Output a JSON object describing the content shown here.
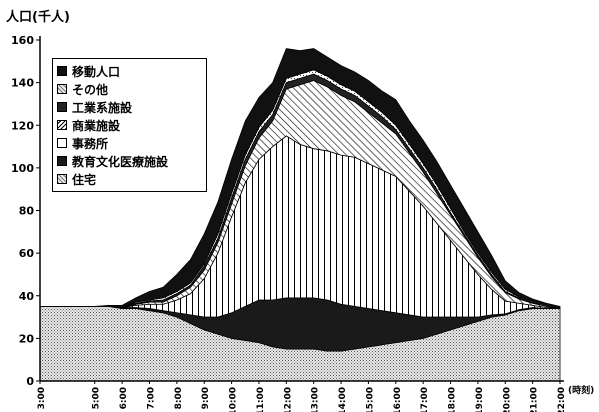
{
  "chart_data": {
    "type": "area",
    "title": "",
    "ylabel": "人口(千人)",
    "xlabel": "(時刻)",
    "ylim": [
      0,
      160
    ],
    "yticks": [
      0,
      20,
      40,
      60,
      80,
      100,
      120,
      140,
      160
    ],
    "grid": false,
    "legend_position": "top-left",
    "categories": [
      "3:00",
      "3:30",
      "4:00",
      "4:30",
      "5:00",
      "5:30",
      "6:00",
      "6:30",
      "7:00",
      "7:30",
      "8:00",
      "8:30",
      "9:00",
      "9:30",
      "10:00",
      "10:30",
      "11:00",
      "11:30",
      "12:00",
      "12:30",
      "13:00",
      "13:30",
      "14:00",
      "14:30",
      "15:00",
      "15:30",
      "16:00",
      "16:30",
      "17:00",
      "17:30",
      "18:00",
      "18:30",
      "19:00",
      "19:30",
      "20:00",
      "20:30",
      "21:00",
      "21:30",
      "22:00"
    ],
    "x_tick_labels": [
      "3:00",
      "5:00",
      "6:00",
      "7:00",
      "8:00",
      "9:00",
      "10:00",
      "11:00",
      "12:00",
      "13:00",
      "14:00",
      "15:00",
      "16:00",
      "17:00",
      "18:00",
      "19:00",
      "20:00",
      "21:00",
      "22:00"
    ],
    "series": [
      {
        "name": "住宅",
        "values": [
          35,
          35,
          35,
          35,
          35,
          35,
          34,
          34,
          33,
          32,
          30,
          27,
          24,
          22,
          20,
          19,
          18,
          16,
          15,
          15,
          15,
          14,
          14,
          15,
          16,
          17,
          18,
          19,
          20,
          22,
          24,
          26,
          28,
          30,
          31,
          33,
          34,
          34,
          34
        ]
      },
      {
        "name": "教育文化医療施設",
        "values": [
          0,
          0,
          0,
          0,
          0,
          0,
          0.5,
          0.5,
          1,
          1,
          2,
          4,
          6,
          8,
          12,
          16,
          20,
          22,
          24,
          24,
          24,
          24,
          22,
          20,
          18,
          16,
          14,
          12,
          10,
          8,
          6,
          4,
          2,
          1,
          0.5,
          0.5,
          0.5,
          0,
          0
        ]
      },
      {
        "name": "事務所",
        "values": [
          0,
          0,
          0,
          0,
          0,
          0,
          0,
          1,
          2,
          3,
          6,
          10,
          18,
          30,
          45,
          58,
          66,
          72,
          76,
          72,
          70,
          70,
          70,
          70,
          68,
          66,
          64,
          58,
          52,
          44,
          36,
          28,
          20,
          12,
          6,
          3,
          1,
          0.5,
          0
        ]
      },
      {
        "name": "商業施設",
        "values": [
          0,
          0,
          0,
          0,
          0,
          0,
          0,
          0.5,
          1,
          1,
          2,
          3,
          4,
          5,
          6,
          8,
          10,
          12,
          22,
          28,
          32,
          30,
          28,
          26,
          24,
          22,
          20,
          18,
          16,
          14,
          12,
          10,
          8,
          6,
          4,
          2,
          1,
          0.5,
          0
        ]
      },
      {
        "name": "工業系施設",
        "values": [
          0,
          0,
          0,
          0,
          0,
          0,
          0,
          0.5,
          0.5,
          1,
          1,
          1,
          2,
          2,
          3,
          3,
          3,
          3,
          3,
          3,
          3,
          3,
          3,
          3,
          3,
          3,
          2,
          2,
          2,
          2,
          1,
          1,
          1,
          1,
          0.5,
          0.5,
          0.5,
          0,
          0
        ]
      },
      {
        "name": "その他",
        "values": [
          0,
          0,
          0,
          0,
          0,
          0,
          0,
          0.5,
          0.5,
          1,
          1,
          1,
          1,
          2,
          2,
          2,
          2,
          2,
          2,
          2,
          2,
          2,
          2,
          2,
          2,
          2,
          2,
          2,
          2,
          2,
          2,
          1,
          1,
          1,
          1,
          0.5,
          0.5,
          0.5,
          0
        ]
      },
      {
        "name": "移動人口",
        "values": [
          0,
          0,
          0,
          0,
          0,
          0.5,
          1,
          2,
          4,
          5,
          8,
          11,
          14,
          15,
          16,
          16,
          14,
          13,
          14,
          11,
          10,
          9,
          9,
          9,
          10,
          10,
          12,
          11,
          11,
          11,
          11,
          11,
          10,
          8,
          4,
          2,
          1,
          1,
          1
        ]
      }
    ],
    "legend_order": [
      "移動人口",
      "その他",
      "工業系施設",
      "商業施設",
      "事務所",
      "教育文化医療施設",
      "住宅"
    ]
  },
  "styles": {
    "移動人口": {
      "fill": "#111111",
      "pattern": "solid",
      "stroke": "#000000"
    },
    "その他": {
      "fill": "#ffffff",
      "pattern": "dots",
      "stroke": "#000000"
    },
    "工業系施設": {
      "fill": "#222222",
      "pattern": "solid",
      "stroke": "#000000"
    },
    "商業施設": {
      "fill": "#ffffff",
      "pattern": "diagonal",
      "stroke": "#000000"
    },
    "事務所": {
      "fill": "#ffffff",
      "pattern": "vertical",
      "stroke": "#000000"
    },
    "教育文化医療施設": {
      "fill": "#1a1a1a",
      "pattern": "solid",
      "stroke": "#000000"
    },
    "住宅": {
      "fill": "#e4e4e4",
      "pattern": "dots",
      "stroke": "#000000"
    }
  }
}
